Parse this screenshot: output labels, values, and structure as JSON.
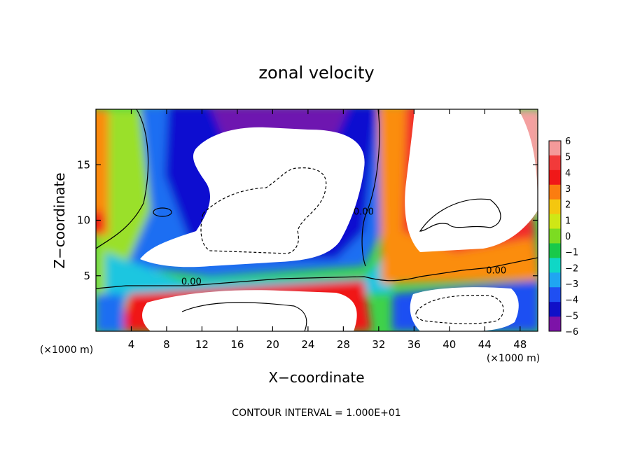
{
  "chart_data": {
    "type": "heatmap",
    "title": "zonal velocity",
    "xlabel": "X−coordinate",
    "ylabel": "Z−coordinate",
    "x_unit_left": "(×1000 m)",
    "x_unit_right": "(×1000 m)",
    "xlim": [
      0,
      50
    ],
    "ylim": [
      0,
      20
    ],
    "x_ticks": [
      4,
      8,
      12,
      16,
      20,
      24,
      28,
      32,
      36,
      40,
      44,
      48
    ],
    "x_tick_labels": [
      "4",
      "8",
      "12",
      "16",
      "20",
      "24",
      "28",
      "32",
      "36",
      "40",
      "44",
      "48"
    ],
    "y_ticks": [
      5,
      10,
      15
    ],
    "y_tick_labels": [
      "5",
      "10",
      "15"
    ],
    "colorbar": {
      "levels": [
        6,
        5,
        4,
        3,
        2,
        1,
        0,
        -1,
        -2,
        -3,
        -4,
        -5,
        -6
      ],
      "labels": [
        "6",
        "5",
        "4",
        "3",
        "2",
        "1",
        "0",
        "−1",
        "−2",
        "−3",
        "−4",
        "−5",
        "−6"
      ],
      "colors": [
        "#f49a9a",
        "#f23a3a",
        "#f01818",
        "#fb7d10",
        "#f4c70f",
        "#cfe716",
        "#7cdc22",
        "#19c94a",
        "#0fd7c6",
        "#1fa5f2",
        "#1f4ff2",
        "#1010c8",
        "#7d13a8"
      ]
    },
    "contour_labels": [
      {
        "text": "0.00",
        "x": 10.8,
        "y": 4.2
      },
      {
        "text": "0.00",
        "x": 30.3,
        "y": 10.5
      },
      {
        "text": "0.00",
        "x": 45.3,
        "y": 5.2
      }
    ],
    "footer": "CONTOUR INTERVAL = 1.000E+01"
  }
}
